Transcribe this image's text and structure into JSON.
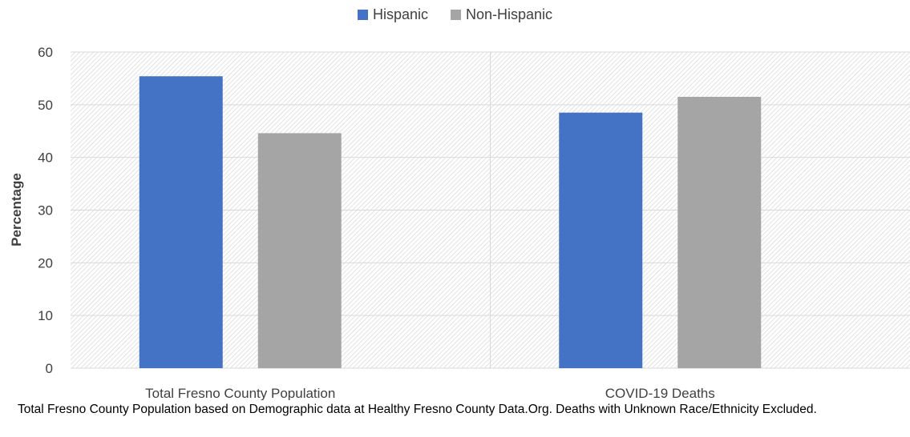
{
  "chart_data": {
    "type": "bar",
    "categories": [
      "Total Fresno County Population",
      "COVID-19 Deaths"
    ],
    "series": [
      {
        "name": "Hispanic",
        "values": [
          55.4,
          48.5
        ],
        "color": "#4472C4"
      },
      {
        "name": "Non-Hispanic",
        "values": [
          44.6,
          51.5
        ],
        "color": "#A5A5A5"
      }
    ],
    "title": "",
    "xlabel": "",
    "ylabel": "Percentage",
    "ylim": [
      0,
      60
    ],
    "yticks": [
      "0",
      "10",
      "20",
      "30",
      "40",
      "50",
      "60"
    ],
    "grid": true,
    "legend_position": "top-center",
    "plot_background": "hatched-gray"
  },
  "note": "Total Fresno County Population based on Demographic data at Healthy Fresno County Data.Org. Deaths with Unknown Race/Ethnicity Excluded."
}
